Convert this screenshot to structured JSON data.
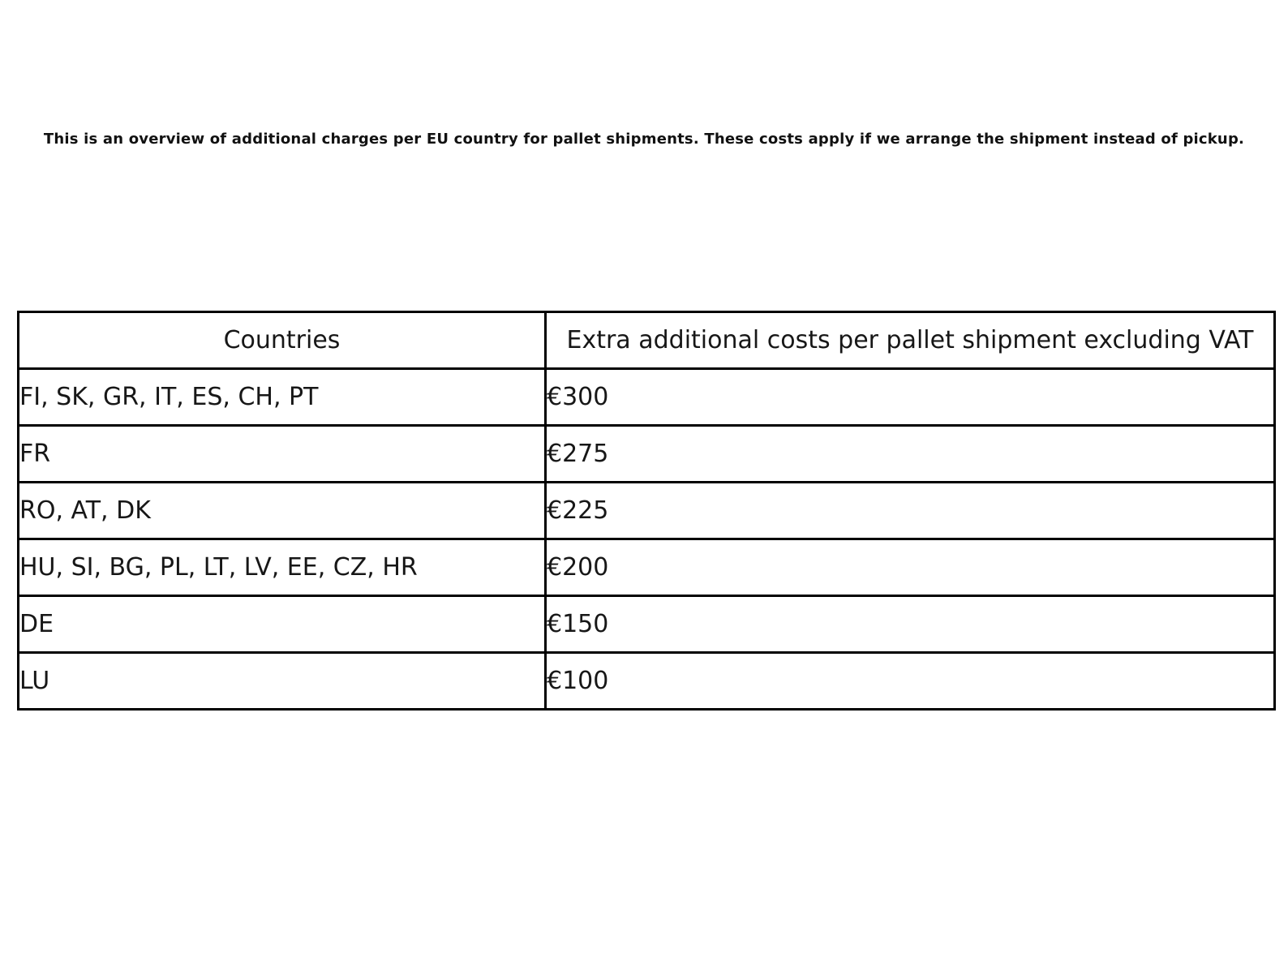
{
  "page": {
    "intro_text": "This is an overview of additional charges per EU country for pallet shipments. These costs apply if we arrange the shipment instead of pickup."
  },
  "table": {
    "headers": {
      "countries": "Countries",
      "costs": "Extra additional costs per pallet shipment excluding VAT"
    },
    "rows": [
      {
        "countries": "FI, SK, GR, IT, ES, CH, PT",
        "cost": "€300"
      },
      {
        "countries": "FR",
        "cost": "€275"
      },
      {
        "countries": "RO, AT, DK",
        "cost": "€225"
      },
      {
        "countries": "HU, SI, BG, PL, LT, LV, EE, CZ, HR",
        "cost": "€200"
      },
      {
        "countries": "DE",
        "cost": "€150"
      },
      {
        "countries": "LU",
        "cost": "€100"
      }
    ]
  },
  "colors": {
    "background": "#ffffff",
    "text": "#171717",
    "border": "#000000"
  }
}
